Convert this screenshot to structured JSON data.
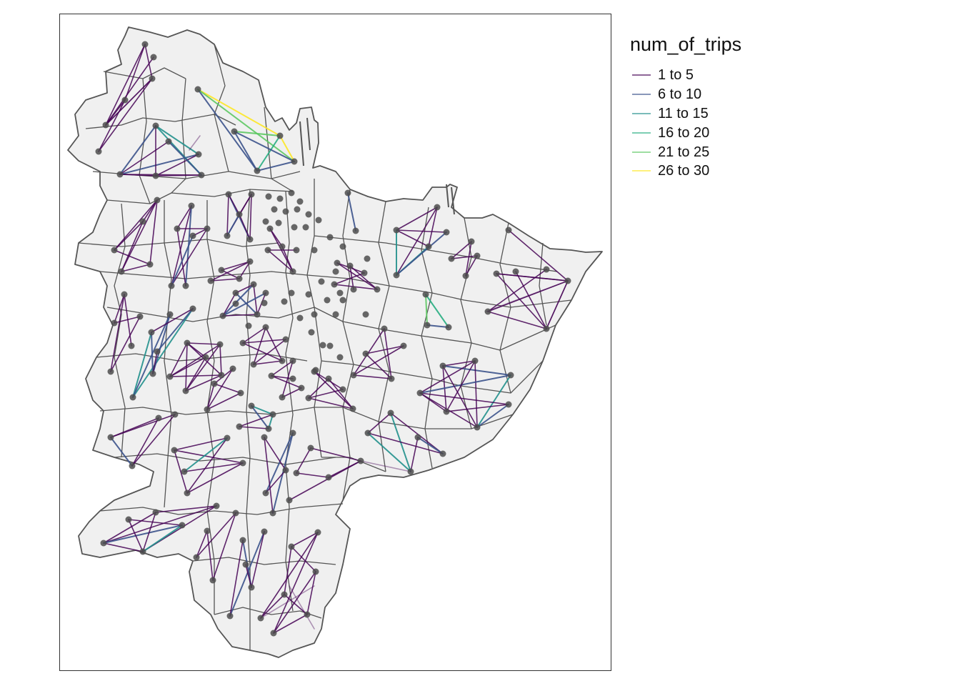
{
  "legend": {
    "title": "num_of_trips",
    "items": [
      {
        "label": "1 to 5",
        "color": "#440154"
      },
      {
        "label": "6 to 10",
        "color": "#3b528b"
      },
      {
        "label": "11 to 15",
        "color": "#21908c"
      },
      {
        "label": "16 to 20",
        "color": "#27ad81"
      },
      {
        "label": "21 to 25",
        "color": "#5dc863"
      },
      {
        "label": "26 to 30",
        "color": "#fde725"
      }
    ]
  },
  "map": {
    "fill_color": "#f0f0f0",
    "border_color": "#555555",
    "node_color": "#4d4d4d"
  }
}
